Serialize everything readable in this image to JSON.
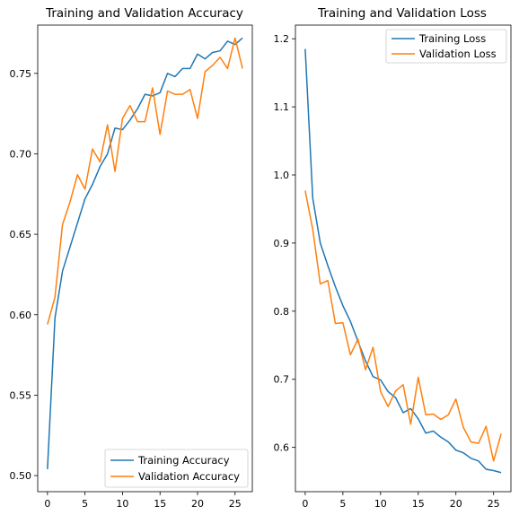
{
  "chart_data": [
    {
      "type": "line",
      "title": "Training and Validation Accuracy",
      "xlabel": "",
      "ylabel": "",
      "xlim": [
        -1.3,
        27.3
      ],
      "ylim": [
        0.49,
        0.78
      ],
      "xticks": [
        0,
        5,
        10,
        15,
        20,
        25
      ],
      "yticks": [
        0.5,
        0.55,
        0.6,
        0.65,
        0.7,
        0.75
      ],
      "ytick_labels": [
        "0.50",
        "0.55",
        "0.60",
        "0.65",
        "0.70",
        "0.75"
      ],
      "legend_position": "lower right",
      "grid": false,
      "x": [
        0,
        1,
        2,
        3,
        4,
        5,
        6,
        7,
        8,
        9,
        10,
        11,
        12,
        13,
        14,
        15,
        16,
        17,
        18,
        19,
        20,
        21,
        22,
        23,
        24,
        25,
        26
      ],
      "series": [
        {
          "name": "Training Accuracy",
          "color": "#1f77b4",
          "values": [
            0.504,
            0.598,
            0.627,
            0.642,
            0.657,
            0.672,
            0.681,
            0.692,
            0.7,
            0.716,
            0.715,
            0.721,
            0.728,
            0.737,
            0.736,
            0.738,
            0.75,
            0.748,
            0.753,
            0.753,
            0.762,
            0.759,
            0.763,
            0.764,
            0.77,
            0.768,
            0.772
          ]
        },
        {
          "name": "Validation Accuracy",
          "color": "#ff7f0e",
          "values": [
            0.594,
            0.611,
            0.656,
            0.67,
            0.687,
            0.678,
            0.703,
            0.695,
            0.718,
            0.689,
            0.722,
            0.73,
            0.72,
            0.72,
            0.741,
            0.712,
            0.739,
            0.737,
            0.737,
            0.74,
            0.722,
            0.751,
            0.755,
            0.76,
            0.753,
            0.772,
            0.753
          ]
        }
      ]
    },
    {
      "type": "line",
      "title": "Training and Validation Loss",
      "xlabel": "",
      "ylabel": "",
      "xlim": [
        -1.3,
        27.3
      ],
      "ylim": [
        0.535,
        1.22
      ],
      "xticks": [
        0,
        5,
        10,
        15,
        20,
        25
      ],
      "yticks": [
        0.6,
        0.7,
        0.8,
        0.9,
        1.0,
        1.1,
        1.2
      ],
      "ytick_labels": [
        "0.6",
        "0.7",
        "0.8",
        "0.9",
        "1.0",
        "1.1",
        "1.2"
      ],
      "legend_position": "upper right",
      "grid": false,
      "x": [
        0,
        1,
        2,
        3,
        4,
        5,
        6,
        7,
        8,
        9,
        10,
        11,
        12,
        13,
        14,
        15,
        16,
        17,
        18,
        19,
        20,
        21,
        22,
        23,
        24,
        25,
        26
      ],
      "series": [
        {
          "name": "Training Loss",
          "color": "#1f77b4",
          "values": [
            1.185,
            0.966,
            0.9,
            0.867,
            0.836,
            0.808,
            0.785,
            0.756,
            0.727,
            0.704,
            0.699,
            0.682,
            0.673,
            0.651,
            0.657,
            0.642,
            0.621,
            0.624,
            0.615,
            0.608,
            0.596,
            0.592,
            0.584,
            0.58,
            0.568,
            0.566,
            0.563
          ]
        },
        {
          "name": "Validation Loss",
          "color": "#ff7f0e",
          "values": [
            0.977,
            0.92,
            0.84,
            0.845,
            0.782,
            0.783,
            0.736,
            0.759,
            0.714,
            0.747,
            0.682,
            0.66,
            0.683,
            0.692,
            0.634,
            0.703,
            0.648,
            0.649,
            0.641,
            0.648,
            0.671,
            0.629,
            0.608,
            0.606,
            0.631,
            0.58,
            0.62
          ]
        }
      ]
    }
  ]
}
